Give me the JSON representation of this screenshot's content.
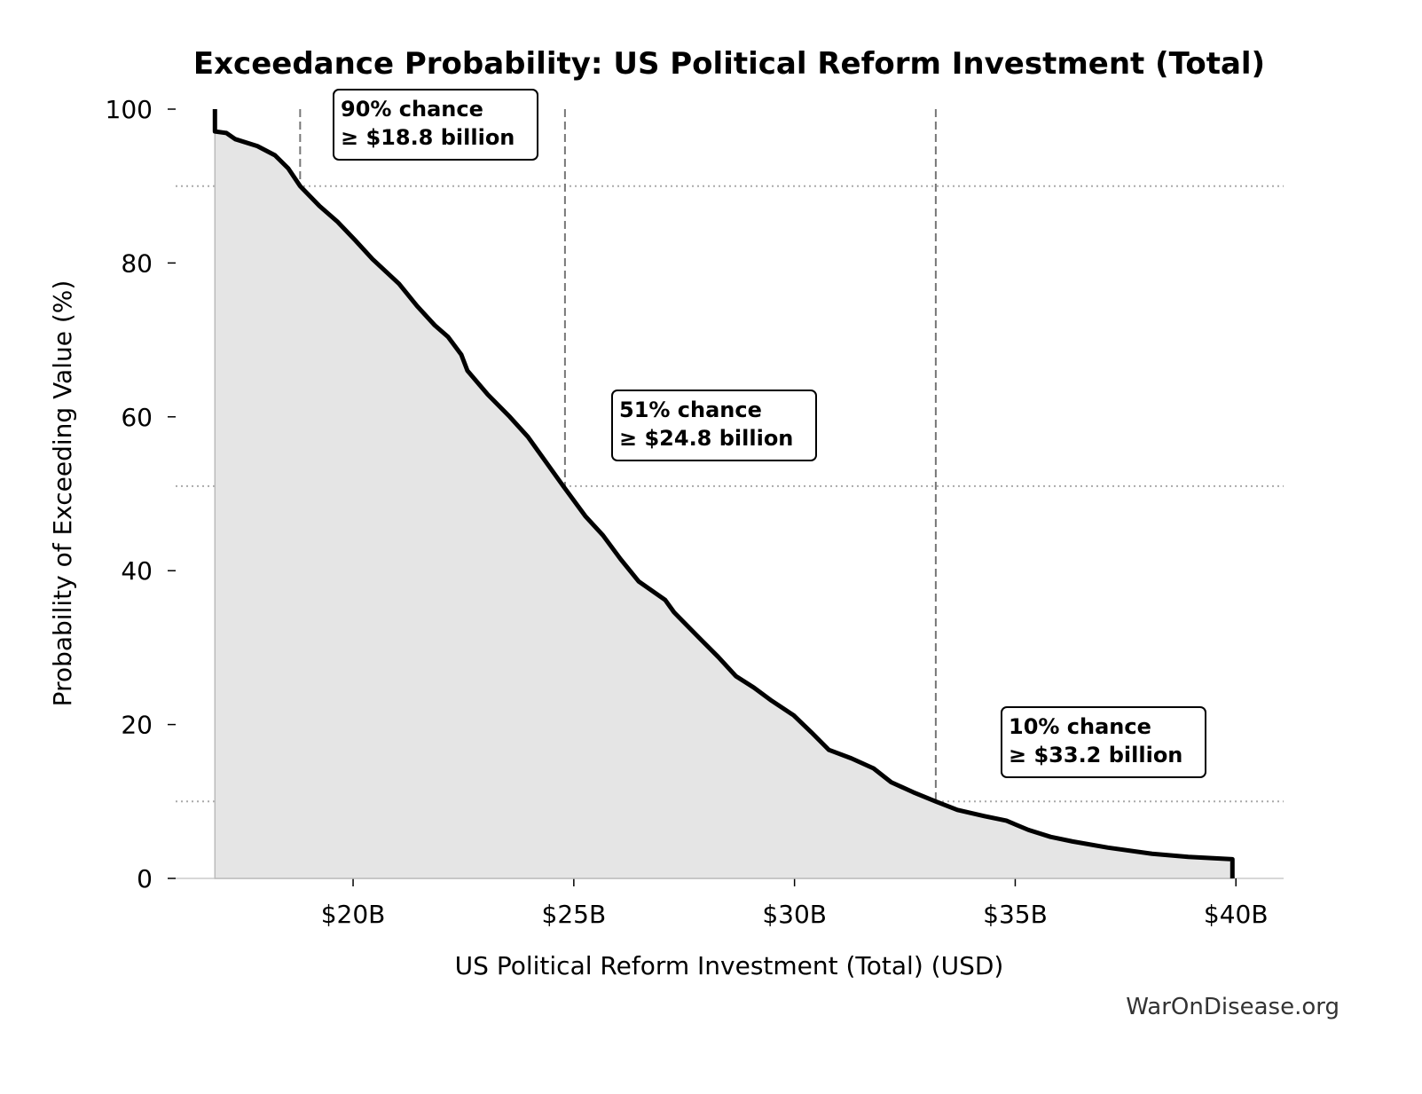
{
  "chart_data": {
    "type": "line",
    "title": "Exceedance Probability: US Political Reform Investment (Total)",
    "x_label": "US Political Reform Investment (Total) (USD)",
    "y_label": "Probability of Exceeding Value (%)",
    "source": "WarOnDisease.org",
    "xlim": [
      15980000000.0,
      41080000000.0
    ],
    "ylim": [
      0,
      100
    ],
    "xticks": [
      {
        "value": 20000000000.0,
        "label": "$20B"
      },
      {
        "value": 25000000000.0,
        "label": "$25B"
      },
      {
        "value": 30000000000.0,
        "label": "$30B"
      },
      {
        "value": 35000000000.0,
        "label": "$35B"
      },
      {
        "value": 40000000000.0,
        "label": "$40B"
      }
    ],
    "yticks": [
      0,
      20,
      40,
      60,
      80,
      100
    ],
    "series": [
      {
        "color": "#000000",
        "fill_color": "#e5e5e5",
        "x": [
          16870000000.0,
          16870000000.0,
          17130000000.0,
          17330000000.0,
          17830000000.0,
          18230000000.0,
          18530000000.0,
          18800000000.0,
          19240000000.0,
          19640000000.0,
          20040000000.0,
          20440000000.0,
          21040000000.0,
          21450000000.0,
          21850000000.0,
          22150000000.0,
          22450000000.0,
          22590000000.0,
          23050000000.0,
          23550000000.0,
          23960000000.0,
          24360000000.0,
          24760000000.0,
          25260000000.0,
          25660000000.0,
          26060000000.0,
          26470000000.0,
          27070000000.0,
          27270000000.0,
          27870000000.0,
          28270000000.0,
          28670000000.0,
          29080000000.0,
          29480000000.0,
          29980000000.0,
          30380000000.0,
          30780000000.0,
          31290000000.0,
          31790000000.0,
          32190000000.0,
          32690000000.0,
          33200000000.0,
          33690000000.0,
          34300000000.0,
          34800000000.0,
          35300000000.0,
          35800000000.0,
          36300000000.0,
          37100000000.0,
          38100000000.0,
          38920000000.0,
          39920000000.0,
          39920000000.0
        ],
        "values": [
          100,
          97.1,
          96.9,
          96.1,
          95.2,
          94.0,
          92.3,
          90,
          87.4,
          85.4,
          83.0,
          80.5,
          77.3,
          74.4,
          71.9,
          70.4,
          68.1,
          66.0,
          62.9,
          60.0,
          57.4,
          54.2,
          51.0,
          47.1,
          44.6,
          41.5,
          38.6,
          36.2,
          34.6,
          31.1,
          28.8,
          26.3,
          24.8,
          23.1,
          21.2,
          19.0,
          16.7,
          15.6,
          14.3,
          12.5,
          11.2,
          10.0,
          8.9,
          8.1,
          7.5,
          6.3,
          5.4,
          4.8,
          4.0,
          3.2,
          2.8,
          2.5,
          0
        ]
      }
    ],
    "thresholds": [
      {
        "probability": 90,
        "value": 18800000000.0,
        "text": [
          "90% chance",
          "≥ $18.8 billion"
        ]
      },
      {
        "probability": 51,
        "value": 24800000000.0,
        "text": [
          "51% chance",
          "≥ $24.8 billion"
        ]
      },
      {
        "probability": 10,
        "value": 33200000000.0,
        "text": [
          "10% chance",
          "≥ $33.2 billion"
        ]
      }
    ]
  }
}
